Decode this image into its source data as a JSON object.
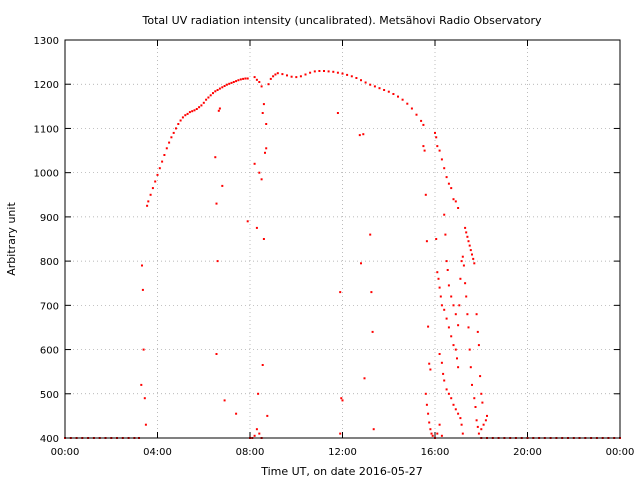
{
  "chart_data": {
    "type": "scatter",
    "title": "Total UV radiation intensity (uncalibrated). Metsähovi Radio Observatory",
    "xlabel": "Time UT, on date 2016-05-27",
    "ylabel": "Arbitrary unit",
    "x_unit": "hours UT",
    "xlim": [
      0,
      24
    ],
    "ylim": [
      400,
      1300
    ],
    "x_ticks": [
      0,
      4,
      8,
      12,
      16,
      20,
      24
    ],
    "x_tick_labels": [
      "00:00",
      "04:00",
      "08:00",
      "12:00",
      "16:00",
      "20:00",
      "00:00"
    ],
    "y_ticks": [
      400,
      500,
      600,
      700,
      800,
      900,
      1000,
      1100,
      1200,
      1300
    ],
    "y_tick_labels": [
      "400",
      "500",
      "600",
      "700",
      "800",
      "900",
      "1000",
      "1100",
      "1200",
      "1300"
    ],
    "grid": true,
    "series_color": "#ff0000",
    "series": [
      {
        "points": [
          [
            0.0,
            400
          ],
          [
            0.25,
            400
          ],
          [
            0.5,
            400
          ],
          [
            0.75,
            400
          ],
          [
            1.0,
            400
          ],
          [
            1.25,
            400
          ],
          [
            1.5,
            400
          ],
          [
            1.75,
            400
          ],
          [
            2.0,
            400
          ],
          [
            2.25,
            400
          ],
          [
            2.5,
            400
          ],
          [
            2.75,
            400
          ],
          [
            3.0,
            400
          ],
          [
            3.2,
            400
          ],
          [
            3.3,
            520
          ],
          [
            3.33,
            790
          ],
          [
            3.37,
            735
          ],
          [
            3.4,
            600
          ],
          [
            3.45,
            490
          ],
          [
            3.5,
            430
          ],
          [
            3.55,
            925
          ],
          [
            3.6,
            935
          ],
          [
            3.7,
            950
          ],
          [
            3.8,
            965
          ],
          [
            3.9,
            980
          ],
          [
            4.0,
            995
          ],
          [
            4.1,
            1010
          ],
          [
            4.2,
            1025
          ],
          [
            4.3,
            1040
          ],
          [
            4.4,
            1055
          ],
          [
            4.5,
            1068
          ],
          [
            4.6,
            1080
          ],
          [
            4.7,
            1090
          ],
          [
            4.8,
            1100
          ],
          [
            4.9,
            1110
          ],
          [
            5.0,
            1118
          ],
          [
            5.1,
            1125
          ],
          [
            5.2,
            1130
          ],
          [
            5.3,
            1133
          ],
          [
            5.4,
            1137
          ],
          [
            5.5,
            1139
          ],
          [
            5.6,
            1141
          ],
          [
            5.7,
            1144
          ],
          [
            5.8,
            1148
          ],
          [
            5.9,
            1152
          ],
          [
            6.0,
            1158
          ],
          [
            6.1,
            1165
          ],
          [
            6.2,
            1170
          ],
          [
            6.3,
            1175
          ],
          [
            6.4,
            1180
          ],
          [
            6.5,
            1184
          ],
          [
            6.6,
            1187
          ],
          [
            6.7,
            1190
          ],
          [
            6.8,
            1193
          ],
          [
            6.9,
            1196
          ],
          [
            7.0,
            1199
          ],
          [
            7.1,
            1201
          ],
          [
            7.2,
            1203
          ],
          [
            7.3,
            1205
          ],
          [
            7.4,
            1207
          ],
          [
            7.5,
            1209
          ],
          [
            7.6,
            1211
          ],
          [
            7.7,
            1212
          ],
          [
            7.8,
            1213
          ],
          [
            7.9,
            1213
          ],
          [
            6.5,
            1035
          ],
          [
            6.55,
            930
          ],
          [
            6.6,
            800
          ],
          [
            6.65,
            1140
          ],
          [
            6.7,
            1145
          ],
          [
            6.8,
            970
          ],
          [
            6.55,
            590
          ],
          [
            6.9,
            485
          ],
          [
            7.4,
            455
          ],
          [
            7.9,
            890
          ],
          [
            8.2,
            1020
          ],
          [
            8.3,
            875
          ],
          [
            8.35,
            500
          ],
          [
            8.4,
            1000
          ],
          [
            8.5,
            985
          ],
          [
            8.55,
            565
          ],
          [
            8.6,
            850
          ],
          [
            8.65,
            1045
          ],
          [
            8.7,
            1055
          ],
          [
            8.75,
            450
          ],
          [
            8.0,
            400
          ],
          [
            8.1,
            400
          ],
          [
            8.2,
            405
          ],
          [
            8.3,
            420
          ],
          [
            8.4,
            410
          ],
          [
            8.5,
            400
          ],
          [
            8.2,
            1216
          ],
          [
            8.3,
            1210
          ],
          [
            8.4,
            1205
          ],
          [
            8.5,
            1195
          ],
          [
            8.55,
            1135
          ],
          [
            8.6,
            1155
          ],
          [
            8.7,
            1110
          ],
          [
            8.8,
            1200
          ],
          [
            8.9,
            1212
          ],
          [
            9.0,
            1218
          ],
          [
            9.1,
            1222
          ],
          [
            9.2,
            1225
          ],
          [
            9.4,
            1223
          ],
          [
            9.6,
            1220
          ],
          [
            9.8,
            1217
          ],
          [
            10.0,
            1216
          ],
          [
            10.2,
            1218
          ],
          [
            10.4,
            1222
          ],
          [
            10.6,
            1226
          ],
          [
            10.8,
            1229
          ],
          [
            11.0,
            1230
          ],
          [
            11.2,
            1230
          ],
          [
            11.4,
            1229
          ],
          [
            11.6,
            1228
          ],
          [
            11.8,
            1226
          ],
          [
            12.0,
            1224
          ],
          [
            12.2,
            1221
          ],
          [
            12.4,
            1218
          ],
          [
            12.6,
            1214
          ],
          [
            12.8,
            1209
          ],
          [
            13.0,
            1204
          ],
          [
            13.2,
            1199
          ],
          [
            13.4,
            1195
          ],
          [
            13.6,
            1191
          ],
          [
            13.8,
            1187
          ],
          [
            14.0,
            1183
          ],
          [
            14.2,
            1178
          ],
          [
            14.4,
            1172
          ],
          [
            14.6,
            1165
          ],
          [
            14.8,
            1156
          ],
          [
            15.0,
            1145
          ],
          [
            15.2,
            1131
          ],
          [
            15.4,
            1117
          ],
          [
            15.5,
            1108
          ],
          [
            11.8,
            1135
          ],
          [
            11.9,
            730
          ],
          [
            11.95,
            490
          ],
          [
            12.0,
            485
          ],
          [
            11.9,
            410
          ],
          [
            12.75,
            1085
          ],
          [
            12.9,
            1087
          ],
          [
            12.8,
            795
          ],
          [
            12.95,
            535
          ],
          [
            13.2,
            860
          ],
          [
            13.25,
            730
          ],
          [
            13.3,
            640
          ],
          [
            13.35,
            420
          ],
          [
            15.5,
            1060
          ],
          [
            15.55,
            1050
          ],
          [
            15.6,
            950
          ],
          [
            15.65,
            845
          ],
          [
            15.7,
            652
          ],
          [
            15.75,
            568
          ],
          [
            15.8,
            555
          ],
          [
            15.6,
            500
          ],
          [
            15.65,
            475
          ],
          [
            15.7,
            455
          ],
          [
            15.75,
            435
          ],
          [
            15.8,
            420
          ],
          [
            15.85,
            410
          ],
          [
            15.9,
            405
          ],
          [
            16.0,
            400
          ],
          [
            16.1,
            410
          ],
          [
            16.2,
            430
          ],
          [
            16.3,
            405
          ],
          [
            16.0,
            1090
          ],
          [
            16.05,
            1080
          ],
          [
            16.1,
            1060
          ],
          [
            16.2,
            1050
          ],
          [
            16.3,
            1030
          ],
          [
            16.4,
            1010
          ],
          [
            16.5,
            990
          ],
          [
            16.6,
            975
          ],
          [
            16.7,
            965
          ],
          [
            16.8,
            940
          ],
          [
            16.9,
            935
          ],
          [
            17.0,
            920
          ],
          [
            16.05,
            850
          ],
          [
            16.1,
            775
          ],
          [
            16.15,
            760
          ],
          [
            16.2,
            740
          ],
          [
            16.25,
            720
          ],
          [
            16.3,
            700
          ],
          [
            16.4,
            690
          ],
          [
            16.5,
            670
          ],
          [
            16.6,
            650
          ],
          [
            16.7,
            630
          ],
          [
            16.8,
            610
          ],
          [
            16.9,
            600
          ],
          [
            16.95,
            580
          ],
          [
            17.0,
            560
          ],
          [
            16.4,
            905
          ],
          [
            16.45,
            860
          ],
          [
            16.5,
            800
          ],
          [
            16.55,
            780
          ],
          [
            16.6,
            745
          ],
          [
            16.7,
            720
          ],
          [
            16.8,
            700
          ],
          [
            16.9,
            680
          ],
          [
            17.0,
            655
          ],
          [
            17.05,
            700
          ],
          [
            17.1,
            760
          ],
          [
            17.15,
            800
          ],
          [
            16.2,
            590
          ],
          [
            16.3,
            570
          ],
          [
            16.35,
            545
          ],
          [
            16.4,
            530
          ],
          [
            16.5,
            510
          ],
          [
            16.6,
            500
          ],
          [
            16.7,
            490
          ],
          [
            16.8,
            475
          ],
          [
            16.9,
            465
          ],
          [
            17.0,
            455
          ],
          [
            17.1,
            445
          ],
          [
            17.15,
            430
          ],
          [
            17.2,
            410
          ],
          [
            17.3,
            875
          ],
          [
            17.35,
            865
          ],
          [
            17.4,
            855
          ],
          [
            17.45,
            845
          ],
          [
            17.5,
            835
          ],
          [
            17.55,
            825
          ],
          [
            17.6,
            815
          ],
          [
            17.65,
            805
          ],
          [
            17.7,
            795
          ],
          [
            17.2,
            810
          ],
          [
            17.25,
            790
          ],
          [
            17.3,
            750
          ],
          [
            17.35,
            720
          ],
          [
            17.4,
            680
          ],
          [
            17.45,
            650
          ],
          [
            17.5,
            600
          ],
          [
            17.55,
            560
          ],
          [
            17.6,
            520
          ],
          [
            17.7,
            490
          ],
          [
            17.75,
            470
          ],
          [
            17.8,
            440
          ],
          [
            17.85,
            425
          ],
          [
            17.9,
            410
          ],
          [
            18.0,
            420
          ],
          [
            18.1,
            430
          ],
          [
            18.2,
            440
          ],
          [
            18.25,
            450
          ],
          [
            17.8,
            680
          ],
          [
            17.85,
            640
          ],
          [
            17.9,
            610
          ],
          [
            17.95,
            540
          ],
          [
            18.0,
            500
          ],
          [
            18.05,
            480
          ],
          [
            18.0,
            400
          ],
          [
            18.25,
            400
          ],
          [
            18.5,
            400
          ],
          [
            18.75,
            400
          ],
          [
            19.0,
            400
          ],
          [
            19.25,
            400
          ],
          [
            19.5,
            400
          ],
          [
            19.75,
            400
          ],
          [
            20.0,
            400
          ],
          [
            20.25,
            400
          ],
          [
            20.5,
            400
          ],
          [
            20.75,
            400
          ],
          [
            21.0,
            400
          ],
          [
            21.25,
            400
          ],
          [
            21.5,
            400
          ],
          [
            21.75,
            400
          ],
          [
            22.0,
            400
          ],
          [
            22.25,
            400
          ],
          [
            22.5,
            400
          ],
          [
            22.75,
            400
          ],
          [
            23.0,
            400
          ],
          [
            23.25,
            400
          ],
          [
            23.5,
            400
          ],
          [
            23.75,
            400
          ],
          [
            24.0,
            400
          ]
        ]
      }
    ]
  }
}
